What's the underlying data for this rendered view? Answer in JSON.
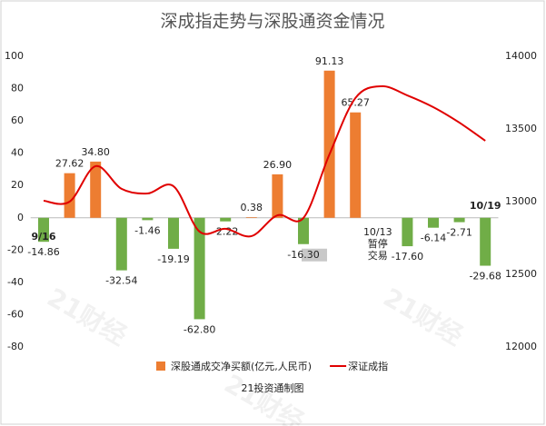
{
  "chart_data": {
    "type": "bar_line",
    "title": "深成指走势与深股通资金情况",
    "categories": [
      "9/16",
      null,
      null,
      null,
      null,
      null,
      null,
      null,
      null,
      null,
      null,
      null,
      null,
      null,
      null,
      null,
      null,
      "10/19"
    ],
    "series": [
      {
        "name": "深股通成交净买额(亿元,人民币)",
        "type": "bar",
        "positive_color": "#ed7d31",
        "negative_color": "#70ad47",
        "values": [
          -14.86,
          27.62,
          34.8,
          -32.54,
          -1.46,
          -19.19,
          -62.8,
          -2.22,
          0.38,
          26.9,
          -16.3,
          91.13,
          65.27,
          null,
          -17.6,
          -6.14,
          -2.71,
          -29.68
        ],
        "value_labels": [
          "-14.86",
          "27.62",
          "34.80",
          "-32.54",
          "-1.46",
          "-19.19",
          "-62.80",
          "-2.22",
          "0.38",
          "26.90",
          "-16.30",
          "91.13",
          "65.27",
          null,
          "-17.60",
          "-6.14",
          "-2.71",
          "-29.68"
        ]
      },
      {
        "name": "深证成指",
        "type": "line",
        "axis": "y2",
        "color": "#e00000",
        "values": [
          13006,
          13000,
          13244,
          13088,
          13056,
          13106,
          12794,
          12813,
          12763,
          12906,
          12888,
          13325,
          13713,
          13794,
          13731,
          13650,
          13544,
          13419
        ]
      }
    ],
    "annotation": {
      "index": 13,
      "lines": [
        "10/13",
        "暂停",
        "交易"
      ]
    },
    "ylim": [
      -80,
      100
    ],
    "yticks": [
      -80,
      -60,
      -40,
      -20,
      0,
      20,
      40,
      60,
      80,
      100
    ],
    "y2lim": [
      12000,
      14000
    ],
    "y2ticks": [
      12000,
      12500,
      13000,
      13500,
      14000
    ],
    "grid": false,
    "legend": "bottom",
    "source": "21投资通制图",
    "watermark": "21财经"
  }
}
